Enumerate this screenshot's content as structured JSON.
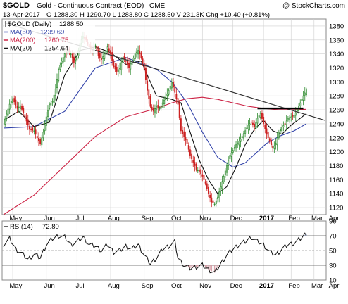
{
  "header": {
    "symbol": "$GOLD",
    "name": "Gold - Continuous Contract (EOD)",
    "exchange": "CME",
    "copyright": "@ StockCharts.com",
    "date": "13-Apr-2017",
    "ohlc": "O 1288.30  H 1290.70  L 1283.80  C 1288.50  V 231.3K  Chg +10.40 (+0.81%)"
  },
  "colors": {
    "up": "#2e8b2e",
    "down": "#cc2222",
    "ma50": "#3344aa",
    "ma200": "#cc2244",
    "ma20": "#111111",
    "trendline": "#333333",
    "rsi": "#111111",
    "grid": "#cfcfcf"
  },
  "chart_data": [
    {
      "type": "candlestick",
      "title": "$GOLD Gold - Continuous Contract (EOD) CME",
      "legend": [
        {
          "name": "$GOLD (Daily)",
          "value": "1288.50",
          "color": "#000000",
          "key": "price"
        },
        {
          "name": "MA(50)",
          "value": "1239.69",
          "color": "#3344aa",
          "key": "ma50"
        },
        {
          "name": "MA(200)",
          "value": "1260.75",
          "color": "#cc2244",
          "key": "ma200"
        },
        {
          "name": "MA(20)",
          "value": "1254.64",
          "color": "#111111",
          "key": "ma20"
        }
      ],
      "legend_position": "top-left",
      "x_ticks": [
        "May",
        "Jun",
        "Jul",
        "Aug",
        "Sep",
        "Oct",
        "Nov",
        "Dec",
        "2017",
        "Feb",
        "Mar",
        "Apr"
      ],
      "y_ticks": [
        1120,
        1140,
        1160,
        1180,
        1200,
        1220,
        1240,
        1260,
        1280,
        1300,
        1320,
        1340,
        1360,
        1380
      ],
      "ylim": [
        1110,
        1390
      ],
      "grid": true,
      "price_path": [
        [
          0,
          1240
        ],
        [
          4,
          1268
        ],
        [
          6,
          1276
        ],
        [
          9,
          1262
        ],
        [
          11,
          1266
        ],
        [
          14,
          1250
        ],
        [
          17,
          1232
        ],
        [
          20,
          1230
        ],
        [
          22,
          1220
        ],
        [
          24,
          1212
        ],
        [
          26,
          1228
        ],
        [
          28,
          1250
        ],
        [
          30,
          1268
        ],
        [
          32,
          1272
        ],
        [
          34,
          1290
        ],
        [
          36,
          1318
        ],
        [
          38,
          1330
        ],
        [
          40,
          1340
        ],
        [
          42,
          1345
        ],
        [
          44,
          1340
        ],
        [
          46,
          1328
        ],
        [
          48,
          1335
        ],
        [
          50,
          1355
        ],
        [
          52,
          1365
        ],
        [
          54,
          1360
        ],
        [
          56,
          1350
        ],
        [
          58,
          1345
        ],
        [
          60,
          1352
        ],
        [
          62,
          1338
        ],
        [
          64,
          1332
        ],
        [
          66,
          1340
        ],
        [
          68,
          1350
        ],
        [
          70,
          1340
        ],
        [
          72,
          1322
        ],
        [
          74,
          1315
        ],
        [
          76,
          1320
        ],
        [
          78,
          1335
        ],
        [
          80,
          1330
        ],
        [
          82,
          1320
        ],
        [
          84,
          1328
        ],
        [
          86,
          1340
        ],
        [
          88,
          1345
        ],
        [
          90,
          1335
        ],
        [
          92,
          1318
        ],
        [
          94,
          1288
        ],
        [
          96,
          1265
        ],
        [
          98,
          1258
        ],
        [
          100,
          1265
        ],
        [
          102,
          1262
        ],
        [
          104,
          1270
        ],
        [
          106,
          1278
        ],
        [
          108,
          1288
        ],
        [
          110,
          1300
        ],
        [
          112,
          1285
        ],
        [
          114,
          1268
        ],
        [
          116,
          1230
        ],
        [
          118,
          1222
        ],
        [
          120,
          1212
        ],
        [
          122,
          1195
        ],
        [
          124,
          1185
        ],
        [
          126,
          1175
        ],
        [
          128,
          1172
        ],
        [
          130,
          1165
        ],
        [
          132,
          1155
        ],
        [
          134,
          1140
        ],
        [
          136,
          1128
        ],
        [
          138,
          1125
        ],
        [
          140,
          1135
        ],
        [
          142,
          1150
        ],
        [
          144,
          1165
        ],
        [
          146,
          1180
        ],
        [
          148,
          1195
        ],
        [
          150,
          1202
        ],
        [
          152,
          1210
        ],
        [
          154,
          1215
        ],
        [
          156,
          1222
        ],
        [
          158,
          1230
        ],
        [
          160,
          1238
        ],
        [
          162,
          1242
        ],
        [
          164,
          1235
        ],
        [
          166,
          1248
        ],
        [
          168,
          1255
        ],
        [
          170,
          1240
        ],
        [
          172,
          1225
        ],
        [
          174,
          1215
        ],
        [
          176,
          1205
        ],
        [
          178,
          1212
        ],
        [
          180,
          1228
        ],
        [
          182,
          1235
        ],
        [
          184,
          1240
        ],
        [
          186,
          1248
        ],
        [
          188,
          1250
        ],
        [
          190,
          1252
        ],
        [
          192,
          1260
        ],
        [
          194,
          1270
        ],
        [
          196,
          1280
        ],
        [
          198,
          1288.5
        ]
      ],
      "ma50": [
        [
          0,
          1234
        ],
        [
          20,
          1236
        ],
        [
          40,
          1258
        ],
        [
          60,
          1320
        ],
        [
          80,
          1335
        ],
        [
          100,
          1318
        ],
        [
          110,
          1300
        ],
        [
          120,
          1270
        ],
        [
          130,
          1228
        ],
        [
          140,
          1192
        ],
        [
          150,
          1178
        ],
        [
          158,
          1184
        ],
        [
          165,
          1198
        ],
        [
          172,
          1212
        ],
        [
          180,
          1222
        ],
        [
          190,
          1230
        ],
        [
          198,
          1240
        ]
      ],
      "ma200": [
        [
          0,
          1110
        ],
        [
          20,
          1138
        ],
        [
          40,
          1180
        ],
        [
          60,
          1222
        ],
        [
          80,
          1250
        ],
        [
          100,
          1262
        ],
        [
          110,
          1270
        ],
        [
          120,
          1276
        ],
        [
          130,
          1278
        ],
        [
          140,
          1275
        ],
        [
          150,
          1270
        ],
        [
          160,
          1265
        ],
        [
          170,
          1262
        ],
        [
          180,
          1260
        ],
        [
          190,
          1260
        ],
        [
          198,
          1260.75
        ]
      ],
      "ma20": [
        [
          0,
          1245
        ],
        [
          10,
          1258
        ],
        [
          20,
          1236
        ],
        [
          30,
          1242
        ],
        [
          40,
          1310
        ],
        [
          50,
          1345
        ],
        [
          60,
          1350
        ],
        [
          70,
          1342
        ],
        [
          80,
          1325
        ],
        [
          90,
          1330
        ],
        [
          100,
          1280
        ],
        [
          110,
          1275
        ],
        [
          116,
          1270
        ],
        [
          122,
          1228
        ],
        [
          128,
          1188
        ],
        [
          134,
          1160
        ],
        [
          140,
          1140
        ],
        [
          146,
          1150
        ],
        [
          152,
          1178
        ],
        [
          158,
          1210
        ],
        [
          164,
          1232
        ],
        [
          170,
          1245
        ],
        [
          176,
          1230
        ],
        [
          182,
          1225
        ],
        [
          188,
          1238
        ],
        [
          194,
          1248
        ],
        [
          198,
          1254.6
        ]
      ],
      "trendline": [
        [
          0,
          1385
        ],
        [
          210,
          1245
        ]
      ],
      "support_line": {
        "from": 166,
        "to": 196,
        "y": 1262
      }
    },
    {
      "type": "line",
      "title": "RSI(14) 72.80",
      "legend": [
        {
          "name": "RSI(14)",
          "value": "72.80",
          "color": "#111111"
        }
      ],
      "y_ticks": [
        10,
        30,
        50,
        70,
        90
      ],
      "ylim": [
        10,
        90
      ],
      "levels": [
        30,
        50,
        70
      ],
      "rsi": [
        [
          0,
          58
        ],
        [
          4,
          66
        ],
        [
          8,
          52
        ],
        [
          12,
          46
        ],
        [
          16,
          38
        ],
        [
          20,
          45
        ],
        [
          24,
          40
        ],
        [
          28,
          58
        ],
        [
          32,
          66
        ],
        [
          36,
          70
        ],
        [
          40,
          68
        ],
        [
          44,
          58
        ],
        [
          48,
          62
        ],
        [
          52,
          68
        ],
        [
          56,
          58
        ],
        [
          60,
          56
        ],
        [
          64,
          50
        ],
        [
          68,
          58
        ],
        [
          72,
          48
        ],
        [
          76,
          50
        ],
        [
          80,
          56
        ],
        [
          84,
          52
        ],
        [
          88,
          58
        ],
        [
          92,
          44
        ],
        [
          96,
          32
        ],
        [
          100,
          40
        ],
        [
          104,
          52
        ],
        [
          108,
          56
        ],
        [
          112,
          62
        ],
        [
          114,
          40
        ],
        [
          118,
          30
        ],
        [
          122,
          26
        ],
        [
          126,
          28
        ],
        [
          130,
          30
        ],
        [
          134,
          24
        ],
        [
          138,
          20
        ],
        [
          142,
          32
        ],
        [
          146,
          44
        ],
        [
          150,
          52
        ],
        [
          154,
          58
        ],
        [
          158,
          62
        ],
        [
          162,
          68
        ],
        [
          166,
          62
        ],
        [
          170,
          58
        ],
        [
          174,
          48
        ],
        [
          178,
          44
        ],
        [
          182,
          52
        ],
        [
          186,
          58
        ],
        [
          190,
          60
        ],
        [
          194,
          66
        ],
        [
          198,
          72.8
        ]
      ]
    }
  ]
}
